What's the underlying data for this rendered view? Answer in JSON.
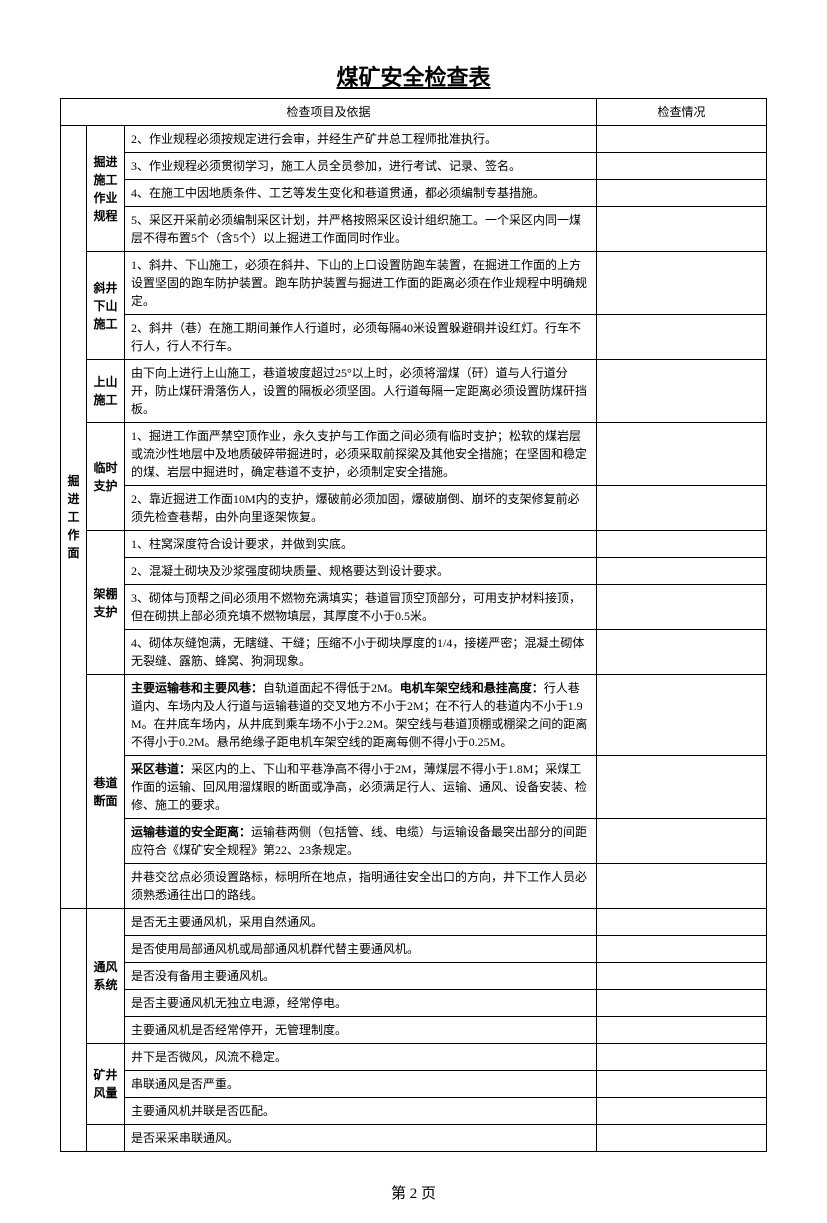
{
  "title": "煤矿安全检查表",
  "header": {
    "col_content": "检查项目及依据",
    "col_status": "检查情况"
  },
  "footer": "第 2 页",
  "group1": {
    "label": "掘进工作面",
    "sub1": {
      "label": "掘进施工作业规程",
      "r1": "2、作业规程必须按规定进行会审，并经生产矿井总工程师批准执行。",
      "r2": "3、作业规程必须贯彻学习，施工人员全员参加，进行考试、记录、签名。",
      "r3": "4、在施工中因地质条件、工艺等发生变化和巷道贯通，都必须编制专基措施。",
      "r4": "5、采区开采前必须编制采区计划，并严格按照采区设计组织施工。一个采区内同一煤层不得布置5个（含5个）以上掘进工作面同时作业。"
    },
    "sub2": {
      "label": "斜井下山施工",
      "r1": "1、斜井、下山施工，必须在斜井、下山的上口设置防跑车装置，在掘进工作面的上方设置坚固的跑车防护装置。跑车防护装置与掘进工作面的距离必须在作业规程中明确规定。",
      "r2": "2、斜井（巷）在施工期间兼作人行道时，必须每隔40米设置躲避硐并设红灯。行车不行人，行人不行车。"
    },
    "sub3": {
      "label": "上山施工",
      "r1": "由下向上进行上山施工，巷道坡度超过25°以上时，必须将溜煤（矸）道与人行道分开，防止煤矸滑落伤人，设置的隔板必须坚固。人行道每隔一定距离必须设置防煤矸挡板。"
    },
    "sub4": {
      "label": "临时支护",
      "r1": "1、掘进工作面严禁空顶作业，永久支护与工作面之间必须有临时支护；松软的煤岩层或流沙性地层中及地质破碎带掘进时，必须采取前探梁及其他安全措施；在坚固和稳定的煤、岩层中掘进时，确定巷道不支护，必须制定安全措施。",
      "r2": "2、靠近掘进工作面10M内的支护，爆破前必须加固，爆破崩倒、崩坏的支架修复前必须先检查巷帮，由外向里逐架恢复。"
    },
    "sub5": {
      "label": "架棚支护",
      "r1": "1、柱窝深度符合设计要求，并做到实底。",
      "r2": "2、混凝土砌块及沙浆强度砌块质量、规格要达到设计要求。",
      "r3": "3、砌体与顶帮之间必须用不燃物充满填实；巷道冒顶空顶部分，可用支护材料接顶，但在砌拱上部必须充填不燃物填层，其厚度不小于0.5米。",
      "r4": "4、砌体灰缝饱满，无瞎缝、干缝；压缩不小于砌块厚度的1/4，接槎严密；混凝土砌体无裂缝、露筋、蜂窝、狗洞现象。"
    },
    "sub6": {
      "label": "巷道断面",
      "r1_prefix": "主要运输巷和主要风巷：",
      "r1_body": "自轨道面起不得低于2M。",
      "r1_b2": "电机车架空线和悬挂高度：",
      "r1_body2": "行人巷道内、车场内及人行道与运输巷道的交叉地方不小于2M；在不行人的巷道内不小于1.9M。在井底车场内，从井底到乘车场不小于2.2M。架空线与巷道顶棚或棚梁之间的距离不得小于0.2M。悬吊绝缘子距电机车架空线的距离每侧不得小于0.25M。",
      "r2_prefix": "采区巷道：",
      "r2_body": "采区内的上、下山和平巷净高不得小于2M，薄煤层不得小于1.8M；采煤工作面的运输、回风用溜煤眼的断面或净高，必须满足行人、运输、通风、设备安装、检修、施工的要求。",
      "r3_prefix": "运输巷道的安全距离：",
      "r3_body": "运输巷两侧（包括管、线、电缆）与运输设备最突出部分的间距应符合《煤矿安全规程》第22、23条规定。",
      "r4": "井巷交岔点必须设置路标，标明所在地点，指明通往安全出口的方向，井下工作人员必须熟悉通往出口的路线。"
    }
  },
  "group2": {
    "sub1": {
      "label": "通风系统",
      "r1": "是否无主要通风机，采用自然通风。",
      "r2": "是否使用局部通风机或局部通风机群代替主要通风机。",
      "r3": "是否没有备用主要通风机。",
      "r4": "是否主要通风机无独立电源，经常停电。",
      "r5": "主要通风机是否经常停开，无管理制度。"
    },
    "sub2": {
      "label": "矿井风量",
      "r1": "井下是否微风，风流不稳定。",
      "r2": "串联通风是否严重。",
      "r3": "主要通风机并联是否匹配。"
    },
    "sub3": {
      "r1": "是否采采串联通风。"
    }
  }
}
